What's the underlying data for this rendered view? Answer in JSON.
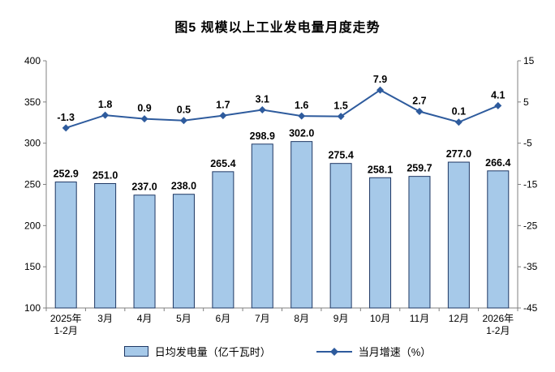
{
  "title": "图5 规模以上工业发电量月度走势",
  "chart_data": {
    "type": "bar",
    "subtype": "bar+line combo",
    "categories": [
      "2025年\n1-2月",
      "3月",
      "4月",
      "5月",
      "6月",
      "7月",
      "8月",
      "9月",
      "10月",
      "11月",
      "12月",
      "2026年\n1-2月"
    ],
    "series": [
      {
        "name": "日均发电量（亿千瓦时）",
        "type": "bar",
        "axis": "left",
        "values": [
          252.9,
          251.0,
          237.0,
          238.0,
          265.4,
          298.9,
          302.0,
          275.4,
          258.1,
          259.7,
          277.0,
          266.4
        ]
      },
      {
        "name": "当月增速（%）",
        "type": "line",
        "axis": "right",
        "values": [
          -1.3,
          1.8,
          0.9,
          0.5,
          1.7,
          3.1,
          1.6,
          1.5,
          7.9,
          2.7,
          0.1,
          4.1
        ]
      }
    ],
    "left_axis": {
      "min": 100,
      "max": 400,
      "ticks": [
        400,
        350,
        300,
        250,
        200,
        150,
        100
      ]
    },
    "right_axis": {
      "min": -45,
      "max": 15,
      "ticks": [
        15,
        5,
        -5,
        -15,
        -25,
        -35,
        -45
      ]
    },
    "grid": "off",
    "legend_position": "bottom",
    "colors": {
      "bar_fill": "#A6C9E9",
      "bar_border": "#1F3864",
      "line": "#2E5B9D",
      "label": "#000000",
      "axis": "#808080"
    },
    "legend": [
      {
        "label": "日均发电量（亿千瓦时）",
        "type": "bar"
      },
      {
        "label": "当月增速（%）",
        "type": "line"
      }
    ]
  }
}
